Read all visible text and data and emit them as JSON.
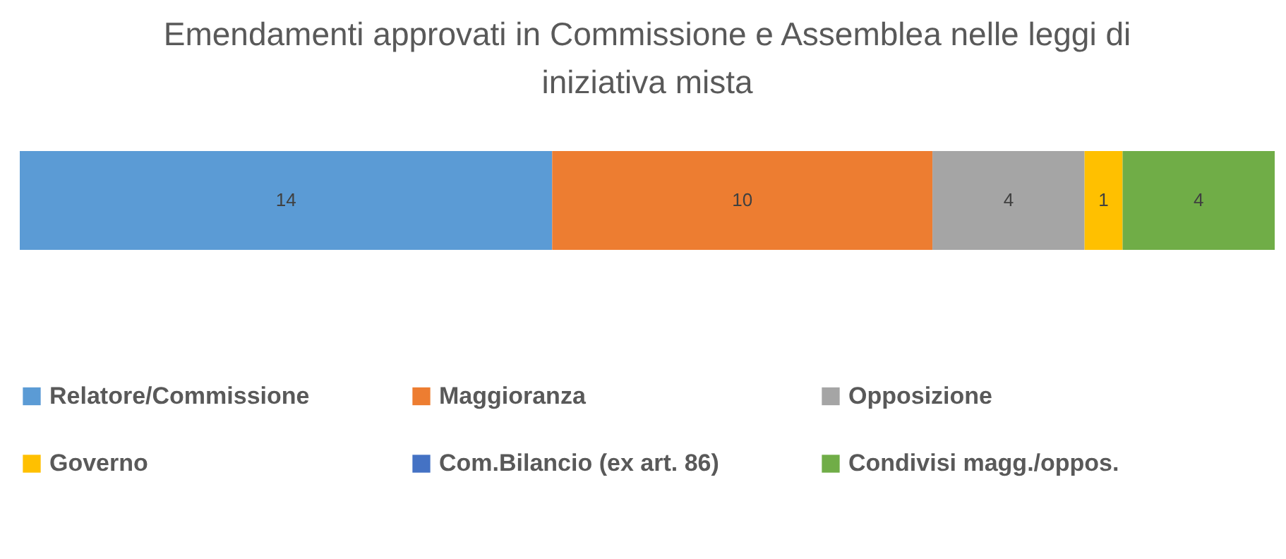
{
  "chart_data": {
    "type": "bar",
    "orientation": "horizontal",
    "stacked": true,
    "title": "Emendamenti approvati in Commissione e Assemblea nelle leggi di iniziativa mista",
    "categories": [
      null
    ],
    "data_labels": true,
    "legend": "bottom",
    "series": [
      {
        "name": "Relatore/Commissione",
        "color": "#5b9bd5",
        "values": [
          14
        ]
      },
      {
        "name": "Maggioranza",
        "color": "#ed7d31",
        "values": [
          10
        ]
      },
      {
        "name": "Opposizione",
        "color": "#a5a5a5",
        "values": [
          4
        ]
      },
      {
        "name": "Governo",
        "color": "#ffc000",
        "values": [
          1
        ]
      },
      {
        "name": "Com.Bilancio (ex art. 86)",
        "color": "#4472c4",
        "values": [
          null
        ]
      },
      {
        "name": "Condivisi magg./oppos.",
        "color": "#70ad47",
        "values": [
          4
        ]
      }
    ]
  }
}
